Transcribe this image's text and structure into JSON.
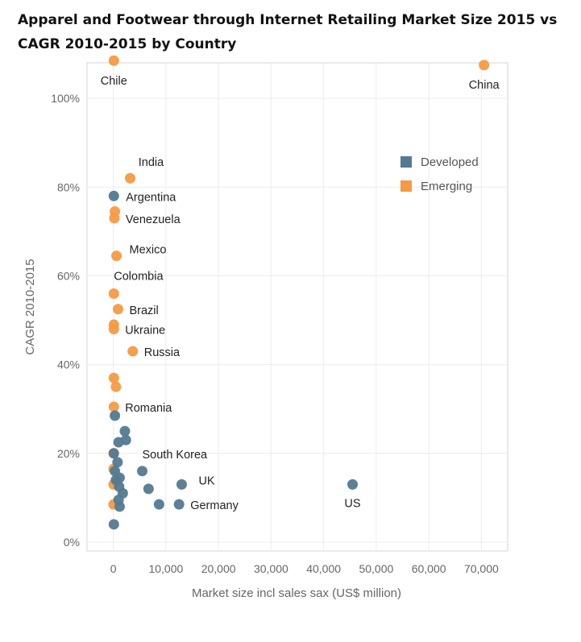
{
  "chart_data": {
    "type": "scatter",
    "title": "Apparel and Footwear through Internet Retailing Market Size 2015 vs CAGR 2010-2015 by Country",
    "xlabel": "Market size incl sales sax (US$ million)",
    "ylabel": "CAGR 2010-2015",
    "xlim": [
      -5000,
      75000
    ],
    "ylim": [
      -2,
      108
    ],
    "xticks": [
      0,
      10000,
      20000,
      30000,
      40000,
      50000,
      60000,
      70000
    ],
    "xtick_labels": [
      "0",
      "10,000",
      "20,000",
      "30,000",
      "40,000",
      "50,000",
      "60,000",
      "70,000"
    ],
    "yticks": [
      0,
      20,
      40,
      60,
      80,
      100
    ],
    "ytick_labels": [
      "0%",
      "20%",
      "40%",
      "60%",
      "80%",
      "100%"
    ],
    "grid": true,
    "legend": {
      "position": "top-right",
      "entries": [
        {
          "name": "Developed",
          "color": "#537a91"
        },
        {
          "name": "Emerging",
          "color": "#f59a42"
        }
      ]
    },
    "series": [
      {
        "name": "Emerging",
        "color": "#f59a42",
        "points": [
          {
            "x": 100,
            "y": 108.5,
            "label": "Chile"
          },
          {
            "x": 70500,
            "y": 107.5,
            "label": "China"
          },
          {
            "x": 3200,
            "y": 82.0,
            "label": "India"
          },
          {
            "x": 300,
            "y": 74.5
          },
          {
            "x": 200,
            "y": 73.0,
            "label": "Venezuela"
          },
          {
            "x": 600,
            "y": 64.5,
            "label": "Mexico"
          },
          {
            "x": 100,
            "y": 56.0,
            "label": "Colombia"
          },
          {
            "x": 900,
            "y": 52.5,
            "label": "Brazil"
          },
          {
            "x": 100,
            "y": 49.0
          },
          {
            "x": 100,
            "y": 48.0,
            "label": "Ukraine"
          },
          {
            "x": 3700,
            "y": 43.0,
            "label": "Russia"
          },
          {
            "x": 100,
            "y": 37.0
          },
          {
            "x": 500,
            "y": 35.0
          },
          {
            "x": 100,
            "y": 30.5,
            "label": "Romania"
          },
          {
            "x": 50,
            "y": 20.0
          },
          {
            "x": 50,
            "y": 16.5
          },
          {
            "x": 50,
            "y": 13.0
          },
          {
            "x": 50,
            "y": 8.5
          }
        ]
      },
      {
        "name": "Developed",
        "color": "#537a91",
        "points": [
          {
            "x": 100,
            "y": 78.0,
            "label": "Argentina"
          },
          {
            "x": 300,
            "y": 28.5
          },
          {
            "x": 2200,
            "y": 25.0
          },
          {
            "x": 2400,
            "y": 23.0
          },
          {
            "x": 1000,
            "y": 22.5
          },
          {
            "x": 100,
            "y": 20.0
          },
          {
            "x": 800,
            "y": 18.0
          },
          {
            "x": 5500,
            "y": 16.0,
            "label": "South Korea"
          },
          {
            "x": 300,
            "y": 16.0
          },
          {
            "x": 1200,
            "y": 14.5
          },
          {
            "x": 500,
            "y": 14.0
          },
          {
            "x": 13000,
            "y": 13.0,
            "label": "UK"
          },
          {
            "x": 45500,
            "y": 13.0,
            "label": "US"
          },
          {
            "x": 6700,
            "y": 12.0
          },
          {
            "x": 1100,
            "y": 12.5
          },
          {
            "x": 1800,
            "y": 11.0
          },
          {
            "x": 1000,
            "y": 9.5
          },
          {
            "x": 8700,
            "y": 8.5
          },
          {
            "x": 12500,
            "y": 8.5,
            "label": "Germany"
          },
          {
            "x": 1200,
            "y": 8.0
          },
          {
            "x": 100,
            "y": 4.0
          }
        ]
      }
    ]
  }
}
